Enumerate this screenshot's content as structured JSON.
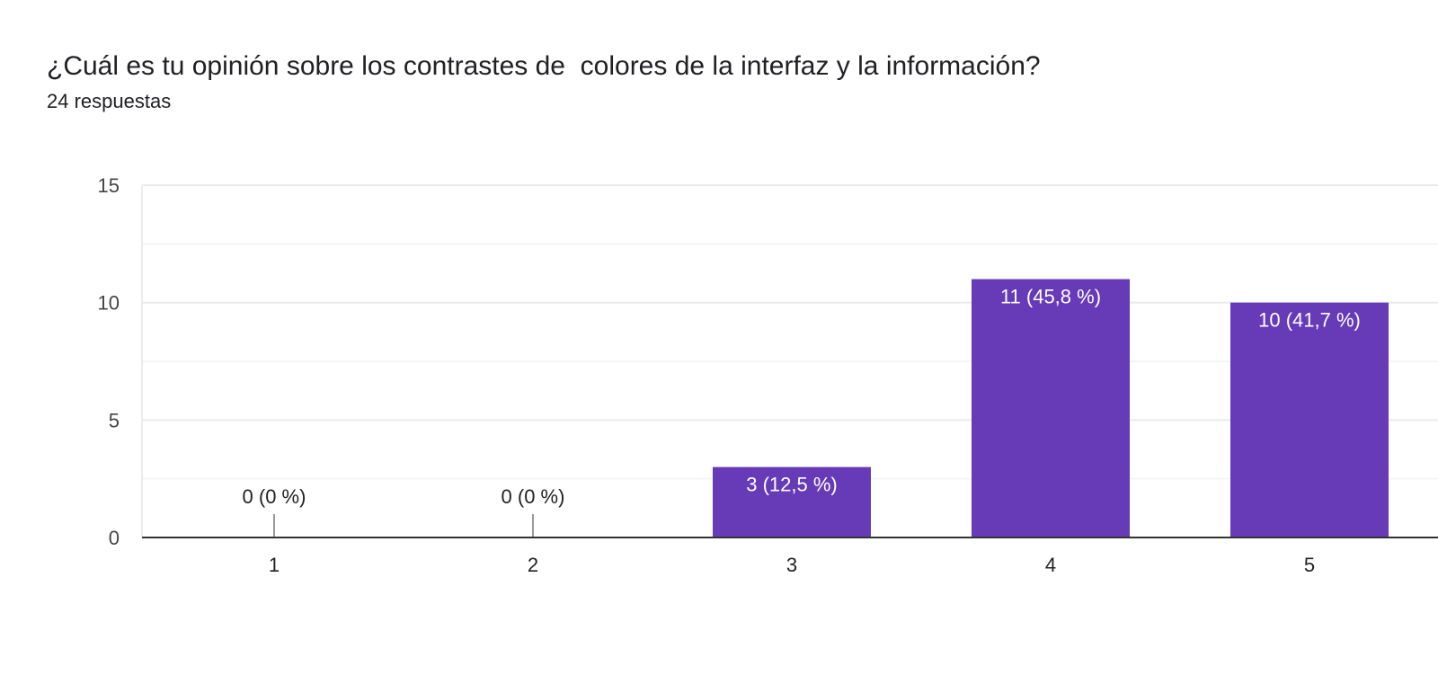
{
  "header": {
    "title": "¿Cuál es tu opinión sobre los contrastes de  colores de la interfaz y la información?",
    "subtitle": "24 respuestas"
  },
  "colors": {
    "bar": "#673ab7",
    "grid": "#ebebeb",
    "grid_minor": "#f5f5f5",
    "axis": "#333333",
    "zero_tick": "#999999",
    "label_inside": "#ffffff",
    "label_outside": "#222222"
  },
  "chart_data": {
    "type": "bar",
    "categories": [
      "1",
      "2",
      "3",
      "4",
      "5"
    ],
    "values": [
      0,
      0,
      3,
      11,
      10
    ],
    "labels": [
      "0 (0 %)",
      "0 (0 %)",
      "3 (12,5 %)",
      "11 (45,8 %)",
      "10 (41,7 %)"
    ],
    "ylim": [
      0,
      15
    ],
    "yticks": [
      "0",
      "5",
      "10",
      "15"
    ],
    "ytick_values": [
      0,
      5,
      10,
      15
    ],
    "grid": true,
    "minor_grid": [
      2.5,
      7.5,
      12.5
    ],
    "legend": "none"
  }
}
